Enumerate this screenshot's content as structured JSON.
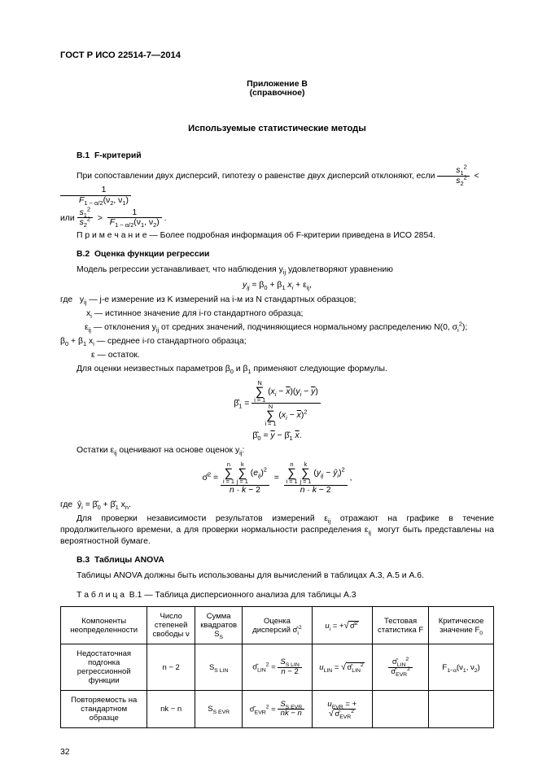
{
  "header": "ГОСТ Р ИСО 22514-7—2014",
  "annex": "Приложение В",
  "annex_sub": "(справочное)",
  "title": "Используемые статистические методы",
  "b1": {
    "head": "В.1  F-критерий",
    "p1a": "При сопоставлении двух дисперсий, гипотезу о равенстве двух дисперсий отклоняют, если ",
    "p1b": "или ",
    "note": "П р и м е ч а н и е — Более подробная информация об F-критерии приведена в ИСО 2854."
  },
  "b2": {
    "head": "В.2  Оценка функции регрессии",
    "p1": "Модель регрессии устанавливает, что наблюдения y<sub>ij</sub> удовлетворяют уравнению",
    "defs": {
      "l1": "где   y<sub>ij</sub> — j-е измерение из K измерений на i-м из N стандартных образцов;",
      "l2": "x<sub>i</sub> — истинное значение для i-го стандартного образца;",
      "l3": "ε<sub>ij</sub> — отклонения y<sub>ij</sub> от средних значений, подчиняющиеся нормальному распределению N(0, σ<sub>i</sub><sup>2</sup>);",
      "l4": "β<sub>0</sub> + β<sub>1</sub> x<sub>i</sub> — среднее i-го стандартного образца;",
      "l5": "ε — остаток."
    },
    "p_est": "Для оценки неизвестных параметров β<sub>0</sub> и β<sub>1</sub> применяют следующие формулы.",
    "p_res": "Остатки ε<sub>ij</sub> оценивают на основе оценок y<sub>ij</sub>:",
    "where_y": "где  ŷ<sub>i</sub> = β̂<sub>0</sub> + β̂<sub>1</sub> x<sub>n</sub>.",
    "p_check": "Для проверки независимости результатов измерений ε<sub>ij</sub> отражают на графике в течение продолжительного времени, а для проверки нормальности распределения ε<sub>ij</sub>  могут быть представлены на вероятностной бумаге."
  },
  "b3": {
    "head": "В.3  Таблицы ANOVA",
    "p1": "Таблицы ANOVA должны быть использованы для вычислений в таблицах А.3, А.5 и А.6.",
    "caption": "Т а б л и ц а  В.1 — Таблица дисперсионного анализа для таблицы А.3",
    "cols": {
      "c1": "Компоненты неопределенности",
      "c2": "Число степеней свободы ν",
      "c3": "Сумма квадратов S<sub>S</sub>",
      "c4": "Оценка дисперсий σ̂<sub>i</sub><sup>2</sup>",
      "c5": "u<sub>i</sub> = +√σ̂<sup>2</sup>",
      "c6": "Тестовая статистика F",
      "c7": "Критическое значение F<sub>0</sub>"
    },
    "r1": {
      "c1": "Недостаточная подгонка регрессионной функции",
      "c2": "n − 2",
      "c3": "S<sub>S LIN</sub>",
      "c7": "F<sub>1−α</sub>(ν<sub>1</sub>, ν<sub>2</sub>)"
    },
    "r2": {
      "c1": "Повторяемость на стандартном образце",
      "c2": "nk − n",
      "c3": "S<sub>S EVR</sub>"
    }
  },
  "page_num": "32"
}
